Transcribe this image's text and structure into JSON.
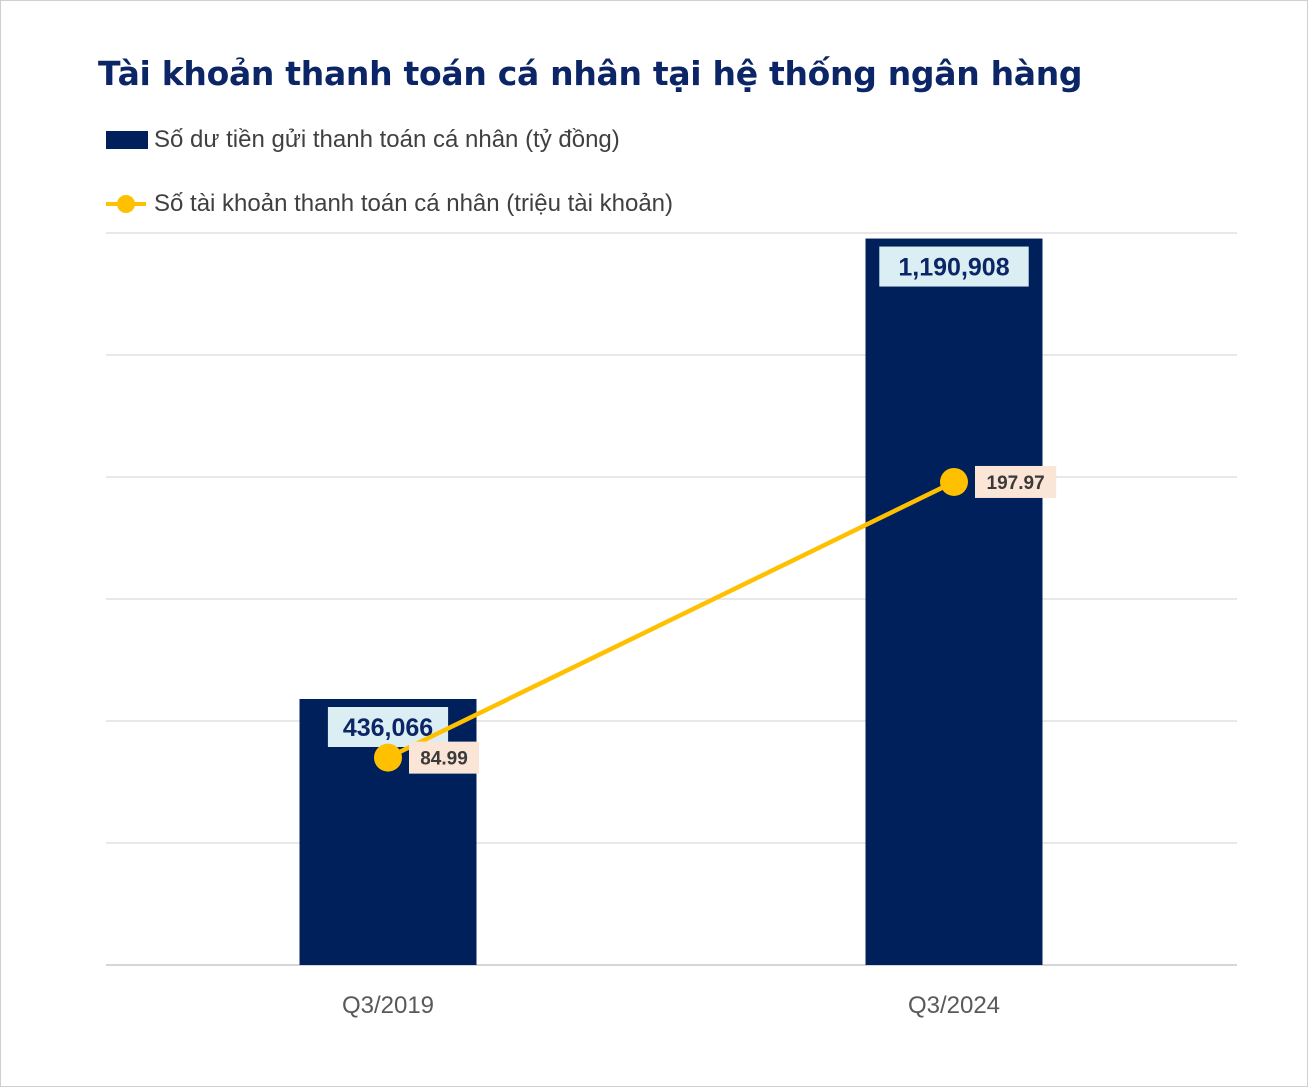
{
  "chart_data": {
    "type": "bar+line",
    "title": "Tài khoản thanh toán cá nhân tại hệ thống ngân hàng",
    "categories": [
      "Q3/2019",
      "Q3/2024"
    ],
    "series": [
      {
        "name": "Số dư tiền gửi thanh toán cá nhân (tỷ đồng)",
        "type": "bar",
        "values": [
          436066,
          1190908
        ],
        "labels": [
          "436,066",
          "1,190,908"
        ],
        "color": "#00205b"
      },
      {
        "name": "Số tài khoản thanh toán cá nhân (triệu tài khoản)",
        "type": "line",
        "values": [
          84.99,
          197.97
        ],
        "labels": [
          "84.99",
          "197.97"
        ],
        "color": "#ffc000"
      }
    ],
    "ylim_bar": [
      0,
      1200000
    ],
    "ylim_line": [
      0,
      300
    ],
    "grid": true,
    "legend_position": "top-left"
  }
}
